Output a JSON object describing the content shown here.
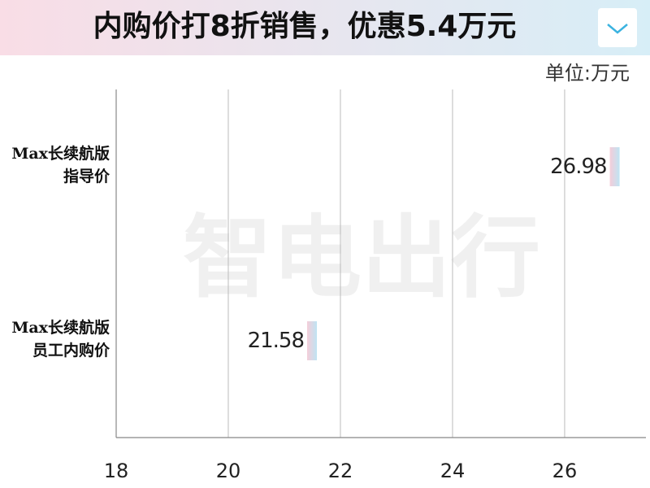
{
  "chart_data": {
    "type": "hbar",
    "title": "内购价打8折销售，优惠5.4万元",
    "unit": "单位:万元",
    "watermark": "智电出行",
    "categories": [
      [
        "Max长续航版",
        "指导价"
      ],
      [
        "Max长续航版",
        "员工内购价"
      ]
    ],
    "values": [
      26.98,
      21.58
    ],
    "xlim": [
      18,
      27.45
    ],
    "xticks": [
      18,
      20,
      22,
      24,
      26
    ],
    "grid": true
  }
}
